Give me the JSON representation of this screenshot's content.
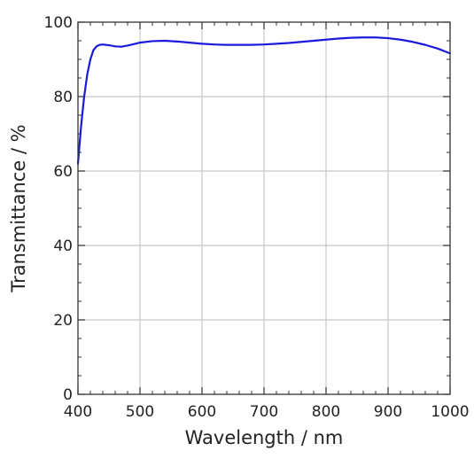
{
  "chart_data": {
    "type": "line",
    "xlabel": "Wavelength / nm",
    "ylabel": "Transmittance / %",
    "xlim": [
      400,
      1000
    ],
    "ylim": [
      0,
      100
    ],
    "x_ticks": [
      400,
      500,
      600,
      700,
      800,
      900,
      1000
    ],
    "y_ticks": [
      0,
      20,
      40,
      60,
      80,
      100
    ],
    "x_minor_step": 20,
    "y_minor_step": 5,
    "grid": true,
    "line_color": "#1a1adc",
    "grid_color": "#c8c8c8",
    "series": [
      {
        "x": [
          400,
          405,
          410,
          415,
          420,
          425,
          430,
          435,
          440,
          445,
          450,
          460,
          470,
          480,
          490,
          500,
          520,
          540,
          560,
          580,
          600,
          620,
          640,
          660,
          680,
          700,
          720,
          740,
          760,
          780,
          800,
          820,
          840,
          860,
          880,
          900,
          920,
          940,
          960,
          980,
          1000
        ],
        "y": [
          62,
          72,
          80,
          86,
          90,
          92.5,
          93.5,
          93.9,
          94.0,
          93.9,
          93.8,
          93.5,
          93.4,
          93.7,
          94.1,
          94.5,
          94.9,
          95.0,
          94.8,
          94.5,
          94.2,
          94.0,
          93.9,
          93.9,
          93.9,
          94.0,
          94.2,
          94.4,
          94.7,
          95.0,
          95.3,
          95.6,
          95.8,
          95.9,
          95.9,
          95.7,
          95.3,
          94.7,
          93.9,
          92.9,
          91.6
        ]
      }
    ]
  }
}
